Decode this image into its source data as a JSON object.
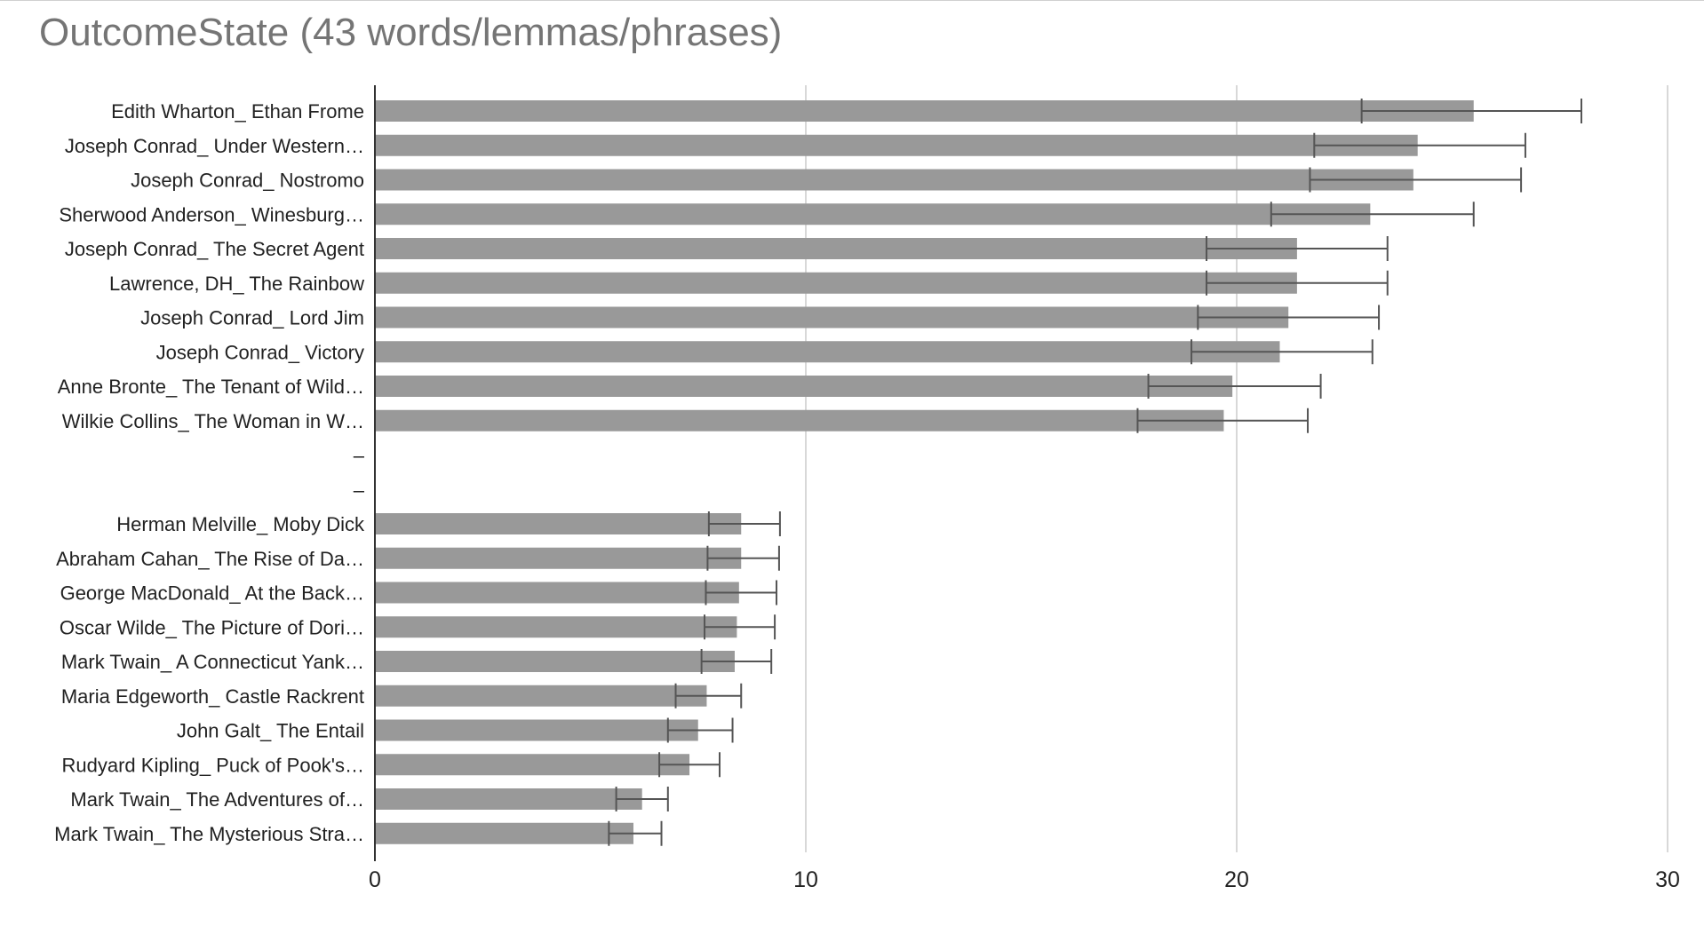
{
  "chart_data": {
    "type": "bar",
    "orientation": "horizontal",
    "title": "OutcomeState (43 words/lemmas/phrases)",
    "xlabel": "",
    "ylabel": "",
    "xlim": [
      0,
      30
    ],
    "xticks": [
      "0",
      "10",
      "20",
      "30"
    ],
    "grid": true,
    "legend": "none",
    "colors": {
      "bar": "#999999",
      "errorbar": "#555555",
      "grid": "#cccccc",
      "axis": "#333333",
      "title": "#757575"
    },
    "categories": [
      "Edith Wharton_ Ethan Frome",
      "Joseph Conrad_ Under Western…",
      "Joseph Conrad_ Nostromo",
      "Sherwood Anderson_ Winesburg…",
      "Joseph Conrad_ The Secret Agent",
      "Lawrence, DH_ The Rainbow",
      "Joseph Conrad_ Lord Jim",
      "Joseph Conrad_ Victory",
      "Anne Bronte_ The Tenant of Wild…",
      "Wilkie Collins_ The Woman in W…",
      "–",
      "–",
      "Herman Melville_ Moby Dick",
      "Abraham Cahan_ The Rise of Da…",
      "George MacDonald_ At the Back…",
      "Oscar Wilde_ The Picture of Dori…",
      "Mark Twain_ A Connecticut Yank…",
      "Maria Edgeworth_ Castle Rackrent",
      "John Galt_ The Entail",
      "Rudyard Kipling_ Puck of Pook's…",
      "Mark Twain_ The Adventures of…",
      "Mark Twain_ The Mysterious Stra…"
    ],
    "values": [
      25.5,
      24.2,
      24.1,
      23.1,
      21.4,
      21.4,
      21.2,
      21.0,
      19.9,
      19.7,
      null,
      null,
      8.5,
      8.5,
      8.45,
      8.4,
      8.35,
      7.7,
      7.5,
      7.3,
      6.2,
      6.0
    ],
    "err_low": [
      22.9,
      21.8,
      21.7,
      20.8,
      19.3,
      19.3,
      19.1,
      18.95,
      17.95,
      17.7,
      null,
      null,
      7.75,
      7.72,
      7.68,
      7.65,
      7.58,
      6.98,
      6.8,
      6.6,
      5.6,
      5.43
    ],
    "err_high": [
      28.0,
      26.7,
      26.6,
      25.5,
      23.5,
      23.5,
      23.3,
      23.15,
      21.95,
      21.65,
      null,
      null,
      9.4,
      9.38,
      9.32,
      9.28,
      9.2,
      8.5,
      8.3,
      8.0,
      6.8,
      6.65
    ]
  }
}
